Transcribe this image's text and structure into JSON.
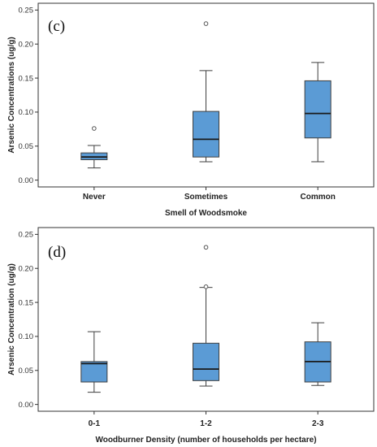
{
  "colors": {
    "box_fill": "#5b9bd5",
    "box_stroke": "#3f3f3f",
    "median": "#1a1a1a",
    "frame": "#333333"
  },
  "chart_data": [
    {
      "type": "boxplot",
      "panel_label": "(c)",
      "xlabel": "Smell of Woodsmoke",
      "ylabel": "Arsenic Concentrations (ug/g)",
      "ylim": [
        -0.01,
        0.26
      ],
      "yticks": [
        "0.00",
        "0.05",
        "0.10",
        "0.15",
        "0.20",
        "0.25"
      ],
      "grid": false,
      "categories": [
        "Never",
        "Sometimes",
        "Common"
      ],
      "boxes": [
        {
          "min": 0.018,
          "q1": 0.03,
          "median": 0.034,
          "q3": 0.04,
          "max": 0.051,
          "outliers": [
            0.076
          ]
        },
        {
          "min": 0.027,
          "q1": 0.034,
          "median": 0.06,
          "q3": 0.101,
          "max": 0.161,
          "outliers": [
            0.23
          ]
        },
        {
          "min": 0.027,
          "q1": 0.062,
          "median": 0.098,
          "q3": 0.146,
          "max": 0.173,
          "outliers": []
        }
      ]
    },
    {
      "type": "boxplot",
      "panel_label": "(d)",
      "xlabel": "Woodburner Density (number of households per hectare)",
      "ylabel": "Arsenic Concentration (ug/g)",
      "ylim": [
        -0.01,
        0.26
      ],
      "yticks": [
        "0.00",
        "0.05",
        "0.10",
        "0.15",
        "0.20",
        "0.25"
      ],
      "grid": false,
      "categories": [
        "0-1",
        "1-2",
        "2-3"
      ],
      "boxes": [
        {
          "min": 0.018,
          "q1": 0.033,
          "median": 0.06,
          "q3": 0.063,
          "max": 0.107,
          "outliers": []
        },
        {
          "min": 0.027,
          "q1": 0.035,
          "median": 0.052,
          "q3": 0.09,
          "max": 0.172,
          "outliers": [
            0.173,
            0.231
          ]
        },
        {
          "min": 0.028,
          "q1": 0.033,
          "median": 0.063,
          "q3": 0.092,
          "max": 0.12,
          "outliers": []
        }
      ]
    }
  ]
}
